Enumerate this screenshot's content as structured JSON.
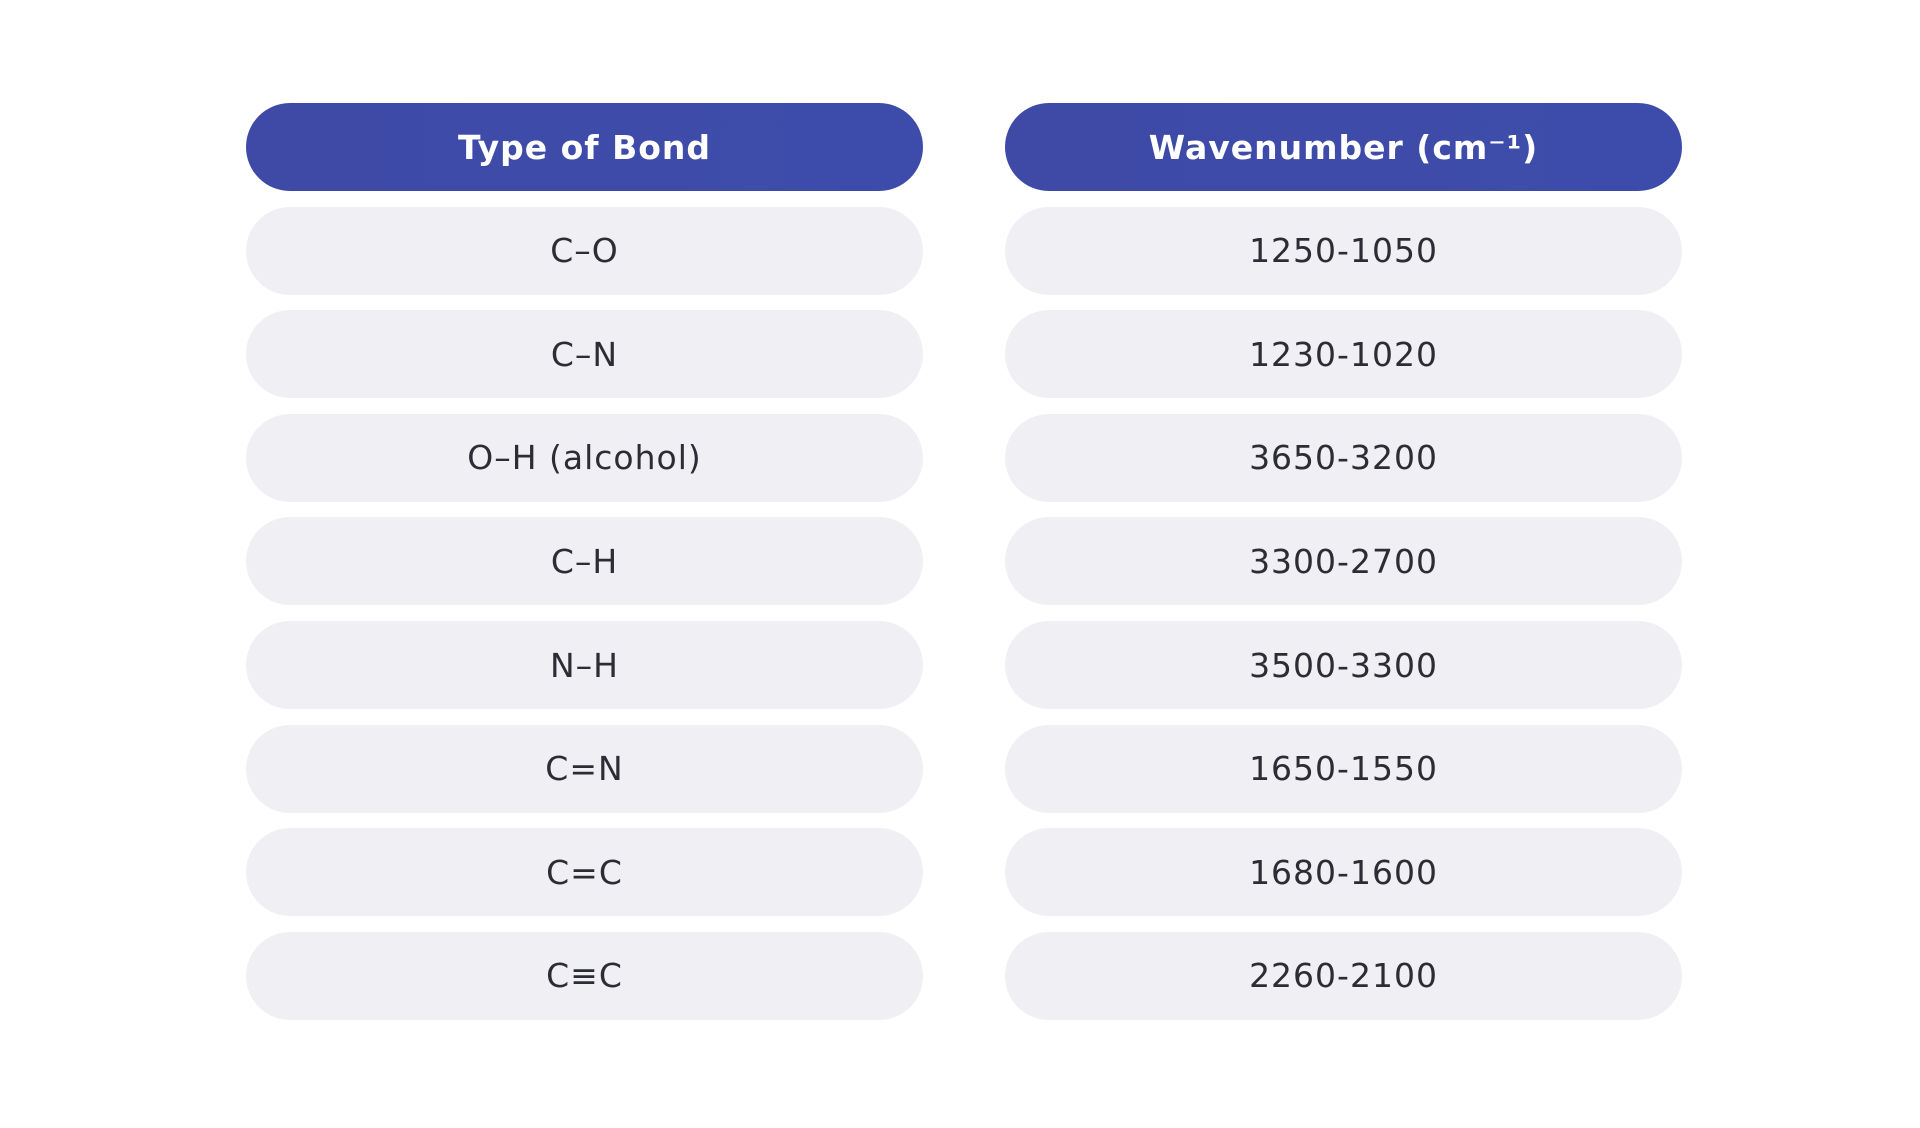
{
  "table": {
    "header": [
      "Type of Bond",
      "Wavenumber (cm⁻¹)"
    ],
    "rows": [
      [
        "C–O",
        "1250-1050"
      ],
      [
        "C–N",
        "1230-1020"
      ],
      [
        "O–H (alcohol)",
        "3650-3200"
      ],
      [
        "C–H",
        "3300-2700"
      ],
      [
        "N–H",
        "3500-3300"
      ],
      [
        "C=N",
        "1650-1550"
      ],
      [
        "C=C",
        "1680-1600"
      ],
      [
        "C≡C",
        "2260-2100"
      ]
    ]
  }
}
